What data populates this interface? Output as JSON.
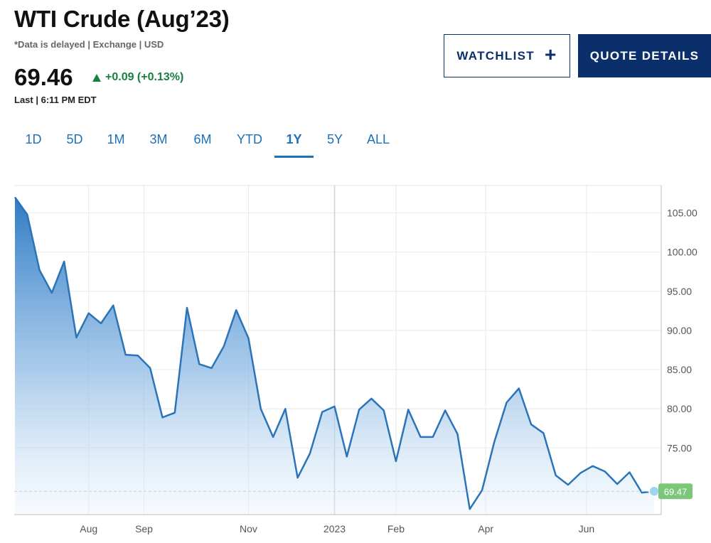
{
  "header": {
    "title": "WTI Crude (Aug’23)",
    "subtitle": "*Data is delayed | Exchange | USD",
    "price": "69.46",
    "change": "+0.09 (+0.13%)",
    "last": "Last | 6:11 PM EDT"
  },
  "buttons": {
    "watchlist": "WATCHLIST",
    "quote_details": "QUOTE DETAILS"
  },
  "tabs": [
    {
      "label": "1D",
      "active": false
    },
    {
      "label": "5D",
      "active": false
    },
    {
      "label": "1M",
      "active": false
    },
    {
      "label": "3M",
      "active": false
    },
    {
      "label": "6M",
      "active": false
    },
    {
      "label": "YTD",
      "active": false
    },
    {
      "label": "1Y",
      "active": true
    },
    {
      "label": "5Y",
      "active": false
    },
    {
      "label": "ALL",
      "active": false
    }
  ],
  "colors": {
    "line": "#2b74b8",
    "fill_top": "#2e7bc4",
    "positive": "#16803c",
    "last_badge": "#7cc67a",
    "brand": "#0b2f6b"
  },
  "chart_data": {
    "type": "area",
    "x_tick_labels": [
      "Aug",
      "Sep",
      "Nov",
      "2023",
      "Feb",
      "Apr",
      "Jun"
    ],
    "y_tick_labels": [
      "105.00",
      "100.00",
      "95.00",
      "90.00",
      "85.00",
      "80.00",
      "75.00"
    ],
    "ylim": [
      66.5,
      108.5
    ],
    "grid": true,
    "last_value_label": "69.47",
    "last_value": 69.47,
    "series": [
      {
        "values": [
          107.0,
          104.8,
          97.7,
          94.8,
          98.8,
          89.1,
          92.2,
          90.9,
          93.2,
          86.9,
          86.8,
          85.2,
          78.9,
          79.5,
          92.9,
          85.7,
          85.2,
          88.0,
          92.6,
          89.0,
          80.0,
          76.4,
          80.0,
          71.2,
          74.3,
          79.6,
          80.3,
          73.9,
          79.9,
          81.3,
          79.8,
          73.3,
          79.9,
          76.4,
          76.4,
          79.8,
          76.8,
          67.2,
          69.6,
          75.8,
          80.8,
          82.6,
          78.0,
          76.9,
          71.5,
          70.3,
          71.8,
          72.7,
          72.0,
          70.4,
          71.9,
          69.3,
          69.47
        ]
      }
    ]
  }
}
